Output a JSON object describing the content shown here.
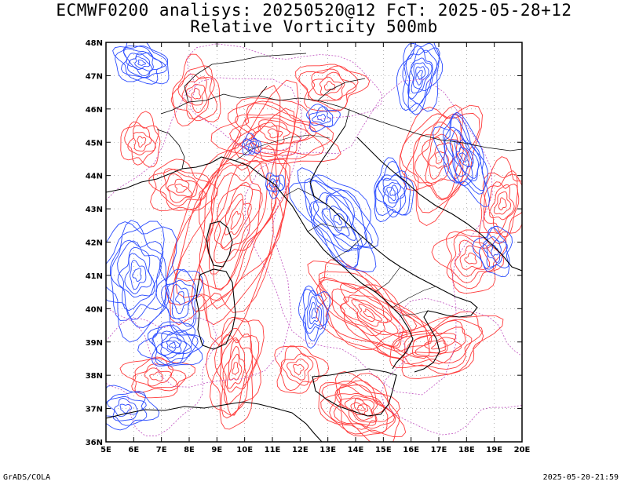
{
  "title_line1": "ECMWF0200 analisys: 20250520@12 FcT: 2025-05-28+12",
  "title_line2": "Relative Vorticity 500mb",
  "footer_left": "GrADS/COLA",
  "footer_right": "2025-05-20-21:59",
  "map": {
    "lon_range": [
      5,
      20
    ],
    "lat_range": [
      36,
      48
    ],
    "lon_ticks": [
      "5E",
      "6E",
      "7E",
      "8E",
      "9E",
      "10E",
      "11E",
      "12E",
      "13E",
      "14E",
      "15E",
      "16E",
      "17E",
      "18E",
      "19E",
      "20E"
    ],
    "lat_ticks": [
      "36N",
      "37N",
      "38N",
      "39N",
      "40N",
      "41N",
      "42N",
      "43N",
      "44N",
      "45N",
      "46N",
      "47N",
      "48N"
    ],
    "positive_color": "#ff3a3a",
    "negative_color": "#2a4bff",
    "zero_color": "#c050c0",
    "coast_color": "#000000",
    "grid_color": "#888888"
  }
}
